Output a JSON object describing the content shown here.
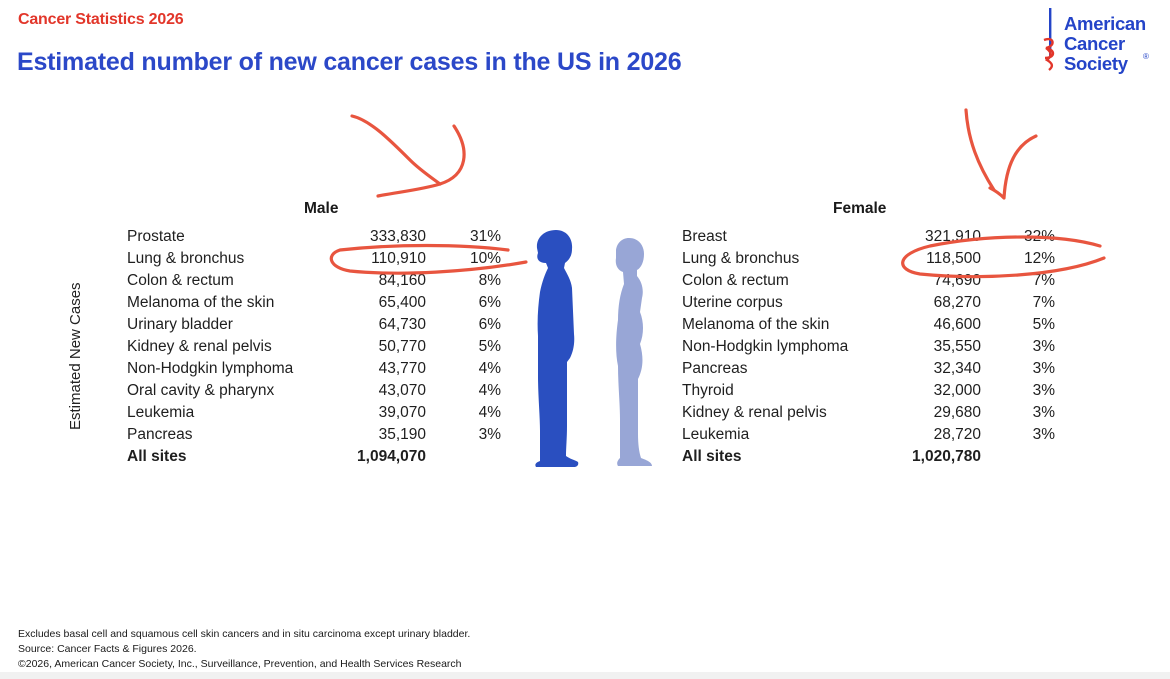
{
  "header": {
    "kicker": "Cancer Statistics 2026",
    "title": "Estimated number of new cancer cases in the US in 2026"
  },
  "logo": {
    "lines": [
      "American",
      "Cancer",
      "Society"
    ],
    "trademark": "®",
    "color": "#2444c8",
    "accent": "#e2362a"
  },
  "chart_data": {
    "type": "table",
    "title": "Estimated number of new cancer cases in the US in 2026",
    "ylabel": "Estimated New Cases",
    "male": {
      "heading": "Male",
      "rows": [
        {
          "site": "Prostate",
          "count": "333,830",
          "percent": "31%"
        },
        {
          "site": "Lung & bronchus",
          "count": "110,910",
          "percent": "10%"
        },
        {
          "site": "Colon & rectum",
          "count": "84,160",
          "percent": "8%"
        },
        {
          "site": "Melanoma of the skin",
          "count": "65,400",
          "percent": "6%"
        },
        {
          "site": "Urinary bladder",
          "count": "64,730",
          "percent": "6%"
        },
        {
          "site": "Kidney & renal pelvis",
          "count": "50,770",
          "percent": "5%"
        },
        {
          "site": "Non-Hodgkin lymphoma",
          "count": "43,770",
          "percent": "4%"
        },
        {
          "site": "Oral cavity & pharynx",
          "count": "43,070",
          "percent": "4%"
        },
        {
          "site": "Leukemia",
          "count": "39,070",
          "percent": "4%"
        },
        {
          "site": "Pancreas",
          "count": "35,190",
          "percent": "3%"
        }
      ],
      "total": {
        "site": "All sites",
        "count": "1,094,070"
      }
    },
    "female": {
      "heading": "Female",
      "rows": [
        {
          "site": "Breast",
          "count": "321,910",
          "percent": "32%"
        },
        {
          "site": "Lung & bronchus",
          "count": "118,500",
          "percent": "12%"
        },
        {
          "site": "Colon & rectum",
          "count": "74,690",
          "percent": "7%"
        },
        {
          "site": "Uterine corpus",
          "count": "68,270",
          "percent": "7%"
        },
        {
          "site": "Melanoma of the skin",
          "count": "46,600",
          "percent": "5%"
        },
        {
          "site": "Non-Hodgkin lymphoma",
          "count": "35,550",
          "percent": "3%"
        },
        {
          "site": "Pancreas",
          "count": "32,340",
          "percent": "3%"
        },
        {
          "site": "Thyroid",
          "count": "32,000",
          "percent": "3%"
        },
        {
          "site": "Kidney & renal pelvis",
          "count": "29,680",
          "percent": "3%"
        },
        {
          "site": "Leukemia",
          "count": "28,720",
          "percent": "3%"
        }
      ],
      "total": {
        "site": "All sites",
        "count": "1,020,780"
      }
    }
  },
  "figures": {
    "male_icon": "male-silhouette-icon",
    "female_icon": "female-silhouette-icon",
    "male_color": "#2a4fc0",
    "female_color": "#98a6d6"
  },
  "annotations": {
    "color": "#e8553f",
    "highlighted_row": "Lung & bronchus"
  },
  "footer": {
    "lines": [
      "Excludes basal cell and squamous cell skin cancers and in situ carcinoma except urinary bladder.",
      "Source: Cancer Facts & Figures 2026.",
      "©2026, American Cancer Society, Inc., Surveillance, Prevention, and Health Services Research"
    ]
  }
}
